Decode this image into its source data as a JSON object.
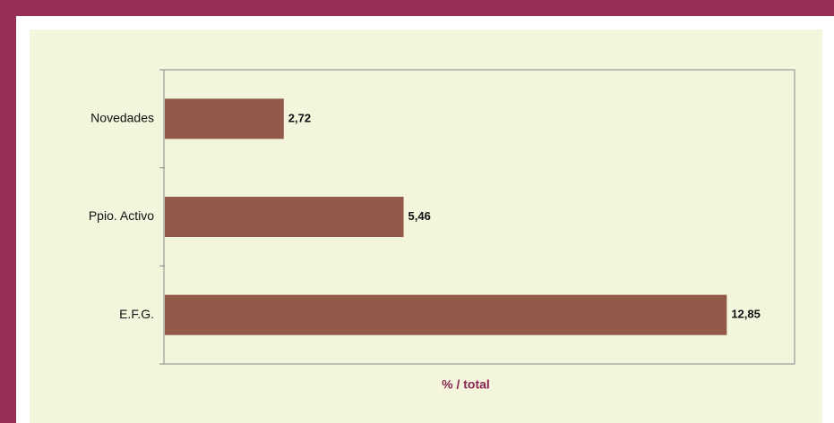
{
  "chart_data": {
    "type": "bar",
    "orientation": "horizontal",
    "categories": [
      "Novedades",
      "Ppio. Activo",
      "E.F.G."
    ],
    "values": [
      2.72,
      5.46,
      12.85
    ],
    "value_labels": [
      "2,72",
      "5,46",
      "12,85"
    ],
    "color": "#935a4a",
    "x_label": "% / total",
    "xlim": [
      0,
      14.4
    ]
  }
}
